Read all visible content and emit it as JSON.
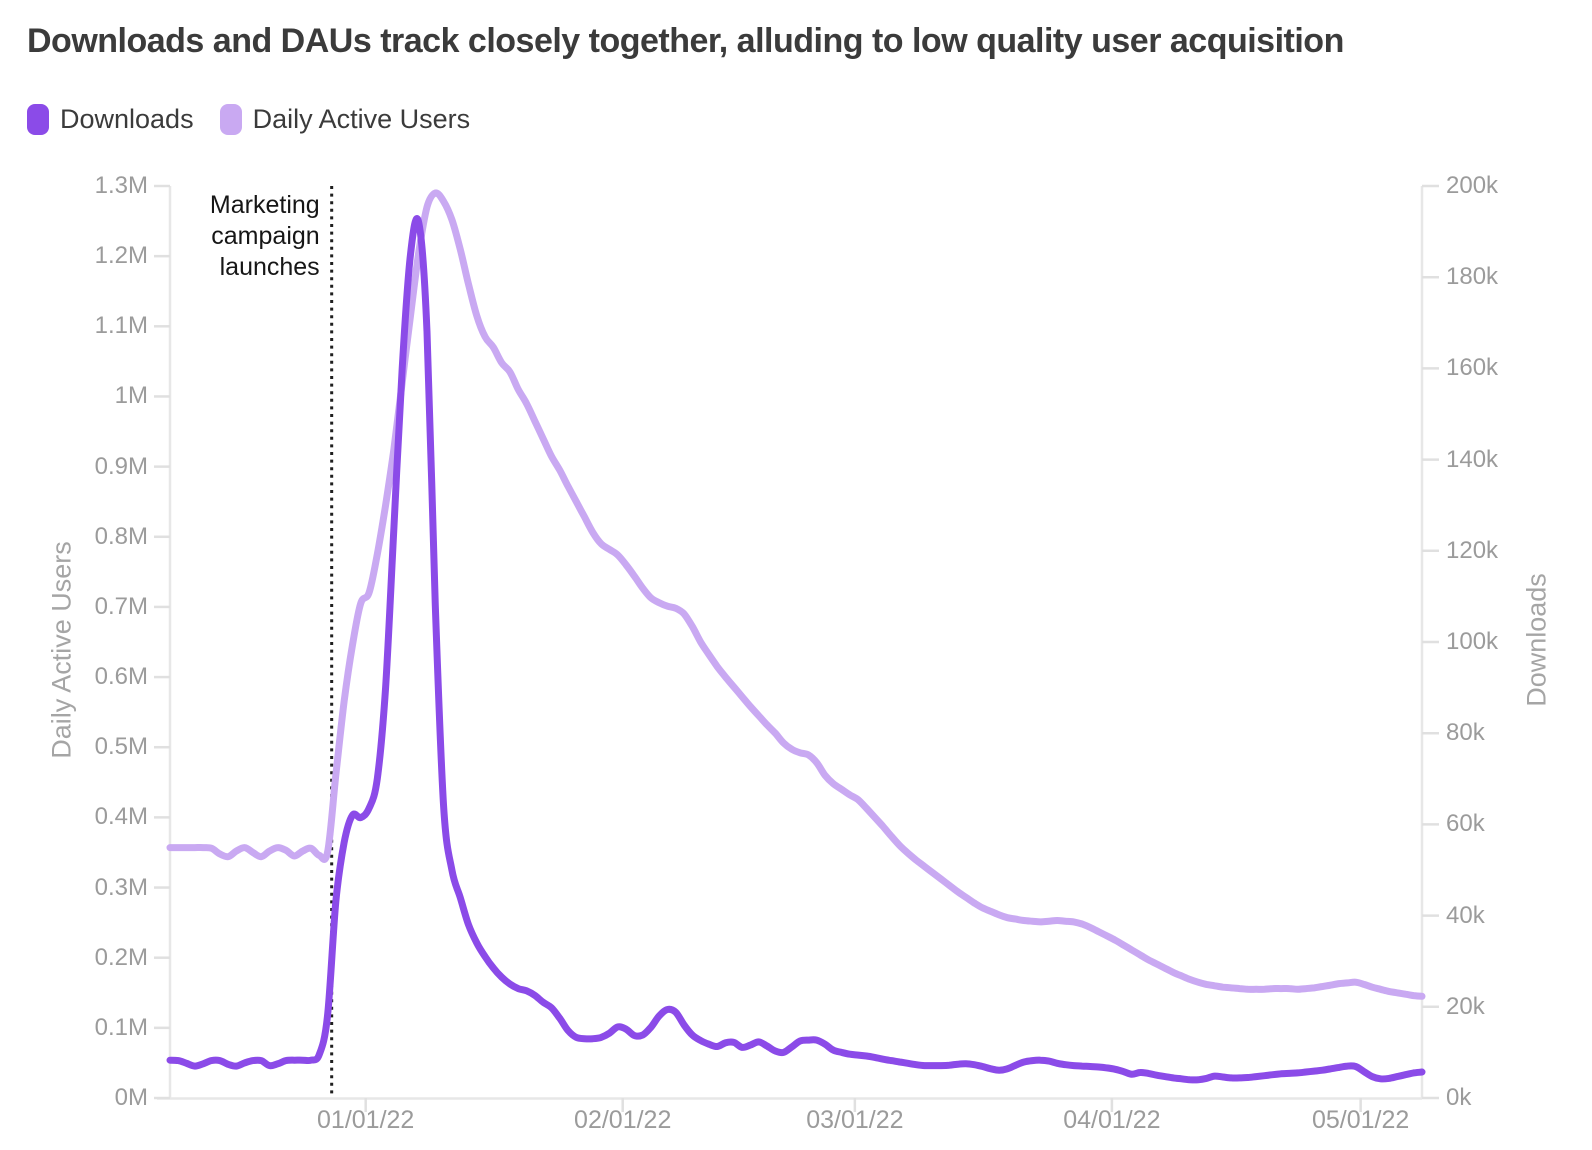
{
  "title": "Downloads and DAUs track closely together, alluding to low quality user acquisition",
  "legend": {
    "items": [
      {
        "label": "Downloads",
        "color": "#8B4BE8"
      },
      {
        "label": "Daily Active Users",
        "color": "#C9A9F2"
      }
    ]
  },
  "chart_data": {
    "type": "line",
    "title": "Downloads and DAUs track closely together, alluding to low quality user acquisition",
    "x_unit": "day_index_from_chart_start",
    "x_range_days": 151,
    "grid": "off",
    "legend_position": "top-left",
    "axis_text_color": "#9B9B9B",
    "axis_line_color": "#E7E7E7",
    "x_ticks": [
      {
        "day": 23.6,
        "label": "01/01/22"
      },
      {
        "day": 54.6,
        "label": "02/01/22"
      },
      {
        "day": 82.6,
        "label": "03/01/22"
      },
      {
        "day": 113.6,
        "label": "04/01/22"
      },
      {
        "day": 143.6,
        "label": "05/01/22"
      }
    ],
    "annotation": {
      "text": "Marketing campaign launches",
      "lines": [
        "Marketing",
        "campaign",
        "launches"
      ],
      "day": 19.5,
      "line_color": "#1F1F1F",
      "line_style": "dotted-vertical"
    },
    "left_axis": {
      "label": "Daily Active Users",
      "unit": "M",
      "min": 0,
      "max": 1.3,
      "tick_step": 0.1,
      "tick_labels": [
        "0M",
        "0.1M",
        "0.2M",
        "0.3M",
        "0.4M",
        "0.5M",
        "0.6M",
        "0.7M",
        "0.8M",
        "0.9M",
        "1M",
        "1.1M",
        "1.2M",
        "1.3M"
      ]
    },
    "right_axis": {
      "label": "Downloads",
      "unit": "k",
      "min": 0,
      "max": 200,
      "tick_step": 20,
      "tick_labels": [
        "0k",
        "20k",
        "40k",
        "60k",
        "80k",
        "100k",
        "120k",
        "140k",
        "160k",
        "180k",
        "200k"
      ]
    },
    "series": [
      {
        "name": "Downloads",
        "axis": "right",
        "color": "#8B4BE8",
        "unit": "thousands",
        "points": [
          [
            0,
            8.3
          ],
          [
            1,
            8.2
          ],
          [
            2,
            7.6
          ],
          [
            3,
            7.0
          ],
          [
            4,
            7.5
          ],
          [
            5,
            8.2
          ],
          [
            6,
            8.2
          ],
          [
            7,
            7.4
          ],
          [
            8,
            7.0
          ],
          [
            9,
            7.7
          ],
          [
            10,
            8.2
          ],
          [
            11,
            8.2
          ],
          [
            12,
            7.1
          ],
          [
            13,
            7.5
          ],
          [
            14,
            8.2
          ],
          [
            15,
            8.3
          ],
          [
            16,
            8.3
          ],
          [
            17,
            8.3
          ],
          [
            18,
            9.5
          ],
          [
            19,
            18
          ],
          [
            20,
            43
          ],
          [
            21,
            56
          ],
          [
            22,
            62
          ],
          [
            23,
            61.5
          ],
          [
            24,
            63.5
          ],
          [
            25,
            70
          ],
          [
            26,
            90
          ],
          [
            27,
            125
          ],
          [
            28,
            160
          ],
          [
            29,
            185
          ],
          [
            30,
            192
          ],
          [
            31,
            168
          ],
          [
            32,
            108
          ],
          [
            33,
            64
          ],
          [
            34,
            50
          ],
          [
            35,
            44
          ],
          [
            36,
            38
          ],
          [
            37,
            34
          ],
          [
            38,
            31
          ],
          [
            39,
            28.5
          ],
          [
            40,
            26.5
          ],
          [
            41,
            25
          ],
          [
            42,
            24
          ],
          [
            43,
            23.5
          ],
          [
            44,
            22.5
          ],
          [
            45,
            21
          ],
          [
            46,
            19.8
          ],
          [
            47,
            17.5
          ],
          [
            48,
            14.8
          ],
          [
            49,
            13.3
          ],
          [
            50,
            13
          ],
          [
            51,
            13
          ],
          [
            52,
            13.3
          ],
          [
            53,
            14.2
          ],
          [
            54,
            15.6
          ],
          [
            55,
            15.1
          ],
          [
            56,
            13.7
          ],
          [
            57,
            13.8
          ],
          [
            58,
            15.5
          ],
          [
            59,
            18
          ],
          [
            60,
            19.4
          ],
          [
            61,
            18.8
          ],
          [
            62,
            16
          ],
          [
            63,
            13.8
          ],
          [
            64,
            12.6
          ],
          [
            65,
            11.8
          ],
          [
            66,
            11.3
          ],
          [
            67,
            12.1
          ],
          [
            68,
            12.2
          ],
          [
            69,
            11.1
          ],
          [
            70,
            11.6
          ],
          [
            71,
            12.3
          ],
          [
            72,
            11.4
          ],
          [
            73,
            10.3
          ],
          [
            74,
            10
          ],
          [
            75,
            11.2
          ],
          [
            76,
            12.5
          ],
          [
            77,
            12.7
          ],
          [
            78,
            12.7
          ],
          [
            79,
            11.8
          ],
          [
            80,
            10.5
          ],
          [
            81,
            10
          ],
          [
            82,
            9.6
          ],
          [
            83,
            9.4
          ],
          [
            84,
            9.2
          ],
          [
            85,
            8.9
          ],
          [
            86,
            8.5
          ],
          [
            87,
            8.2
          ],
          [
            88,
            7.9
          ],
          [
            89,
            7.6
          ],
          [
            90,
            7.3
          ],
          [
            91,
            7.1
          ],
          [
            92,
            7.1
          ],
          [
            93,
            7.1
          ],
          [
            94,
            7.2
          ],
          [
            95,
            7.4
          ],
          [
            96,
            7.5
          ],
          [
            97,
            7.3
          ],
          [
            98,
            6.9
          ],
          [
            99,
            6.4
          ],
          [
            100,
            6.1
          ],
          [
            101,
            6.4
          ],
          [
            102,
            7.2
          ],
          [
            103,
            7.9
          ],
          [
            104,
            8.2
          ],
          [
            105,
            8.3
          ],
          [
            106,
            8.1
          ],
          [
            107,
            7.6
          ],
          [
            108,
            7.3
          ],
          [
            109,
            7.1
          ],
          [
            110,
            7.0
          ],
          [
            111,
            6.9
          ],
          [
            112,
            6.8
          ],
          [
            113,
            6.6
          ],
          [
            114,
            6.3
          ],
          [
            115,
            5.8
          ],
          [
            116,
            5.2
          ],
          [
            117,
            5.6
          ],
          [
            118,
            5.4
          ],
          [
            119,
            5.0
          ],
          [
            120,
            4.7
          ],
          [
            121,
            4.4
          ],
          [
            122,
            4.2
          ],
          [
            123,
            4.0
          ],
          [
            124,
            4.0
          ],
          [
            125,
            4.3
          ],
          [
            126,
            4.8
          ],
          [
            127,
            4.6
          ],
          [
            128,
            4.4
          ],
          [
            129,
            4.4
          ],
          [
            130,
            4.5
          ],
          [
            131,
            4.7
          ],
          [
            132,
            4.9
          ],
          [
            133,
            5.1
          ],
          [
            134,
            5.3
          ],
          [
            135,
            5.4
          ],
          [
            136,
            5.5
          ],
          [
            137,
            5.7
          ],
          [
            138,
            5.9
          ],
          [
            139,
            6.1
          ],
          [
            140,
            6.4
          ],
          [
            141,
            6.7
          ],
          [
            142,
            7.0
          ],
          [
            143,
            6.9
          ],
          [
            144,
            5.8
          ],
          [
            145,
            4.7
          ],
          [
            146,
            4.2
          ],
          [
            147,
            4.3
          ],
          [
            148,
            4.7
          ],
          [
            149,
            5.1
          ],
          [
            150,
            5.5
          ],
          [
            151,
            5.7
          ]
        ]
      },
      {
        "name": "Daily Active Users",
        "axis": "left",
        "color": "#C9A9F2",
        "unit": "millions",
        "points": [
          [
            0,
            0.357
          ],
          [
            1,
            0.357
          ],
          [
            2,
            0.357
          ],
          [
            3,
            0.357
          ],
          [
            4,
            0.357
          ],
          [
            5,
            0.356
          ],
          [
            6,
            0.348
          ],
          [
            7,
            0.344
          ],
          [
            8,
            0.352
          ],
          [
            9,
            0.357
          ],
          [
            10,
            0.35
          ],
          [
            11,
            0.344
          ],
          [
            12,
            0.352
          ],
          [
            13,
            0.357
          ],
          [
            14,
            0.353
          ],
          [
            15,
            0.345
          ],
          [
            16,
            0.352
          ],
          [
            17,
            0.356
          ],
          [
            18,
            0.346
          ],
          [
            19,
            0.35
          ],
          [
            20,
            0.46
          ],
          [
            21,
            0.565
          ],
          [
            22,
            0.645
          ],
          [
            23,
            0.705
          ],
          [
            24,
            0.72
          ],
          [
            25,
            0.775
          ],
          [
            26,
            0.845
          ],
          [
            27,
            0.925
          ],
          [
            28,
            1.02
          ],
          [
            29,
            1.115
          ],
          [
            30,
            1.205
          ],
          [
            31,
            1.27
          ],
          [
            32,
            1.29
          ],
          [
            33,
            1.278
          ],
          [
            34,
            1.252
          ],
          [
            35,
            1.21
          ],
          [
            36,
            1.16
          ],
          [
            37,
            1.115
          ],
          [
            38,
            1.085
          ],
          [
            39,
            1.07
          ],
          [
            40,
            1.048
          ],
          [
            41,
            1.035
          ],
          [
            42,
            1.01
          ],
          [
            43,
            0.99
          ],
          [
            44,
            0.965
          ],
          [
            45,
            0.94
          ],
          [
            46,
            0.915
          ],
          [
            47,
            0.895
          ],
          [
            48,
            0.872
          ],
          [
            49,
            0.85
          ],
          [
            50,
            0.828
          ],
          [
            51,
            0.806
          ],
          [
            52,
            0.79
          ],
          [
            53,
            0.782
          ],
          [
            54,
            0.774
          ],
          [
            55,
            0.76
          ],
          [
            56,
            0.744
          ],
          [
            57,
            0.727
          ],
          [
            58,
            0.713
          ],
          [
            59,
            0.706
          ],
          [
            60,
            0.701
          ],
          [
            61,
            0.698
          ],
          [
            62,
            0.69
          ],
          [
            63,
            0.672
          ],
          [
            64,
            0.65
          ],
          [
            65,
            0.632
          ],
          [
            66,
            0.615
          ],
          [
            67,
            0.6
          ],
          [
            68,
            0.586
          ],
          [
            69,
            0.572
          ],
          [
            70,
            0.558
          ],
          [
            71,
            0.545
          ],
          [
            72,
            0.532
          ],
          [
            73,
            0.52
          ],
          [
            74,
            0.506
          ],
          [
            75,
            0.497
          ],
          [
            76,
            0.492
          ],
          [
            77,
            0.489
          ],
          [
            78,
            0.478
          ],
          [
            79,
            0.46
          ],
          [
            80,
            0.448
          ],
          [
            81,
            0.44
          ],
          [
            82,
            0.432
          ],
          [
            83,
            0.425
          ],
          [
            84,
            0.413
          ],
          [
            85,
            0.4
          ],
          [
            86,
            0.387
          ],
          [
            87,
            0.373
          ],
          [
            88,
            0.36
          ],
          [
            89,
            0.349
          ],
          [
            90,
            0.339
          ],
          [
            91,
            0.33
          ],
          [
            92,
            0.321
          ],
          [
            93,
            0.312
          ],
          [
            94,
            0.303
          ],
          [
            95,
            0.294
          ],
          [
            96,
            0.286
          ],
          [
            97,
            0.278
          ],
          [
            98,
            0.271
          ],
          [
            99,
            0.266
          ],
          [
            100,
            0.261
          ],
          [
            101,
            0.257
          ],
          [
            102,
            0.255
          ],
          [
            103,
            0.253
          ],
          [
            104,
            0.252
          ],
          [
            105,
            0.251
          ],
          [
            106,
            0.252
          ],
          [
            107,
            0.253
          ],
          [
            108,
            0.252
          ],
          [
            109,
            0.251
          ],
          [
            110,
            0.248
          ],
          [
            111,
            0.243
          ],
          [
            112,
            0.237
          ],
          [
            113,
            0.231
          ],
          [
            114,
            0.225
          ],
          [
            115,
            0.218
          ],
          [
            116,
            0.211
          ],
          [
            117,
            0.204
          ],
          [
            118,
            0.197
          ],
          [
            119,
            0.191
          ],
          [
            120,
            0.185
          ],
          [
            121,
            0.179
          ],
          [
            122,
            0.174
          ],
          [
            123,
            0.169
          ],
          [
            124,
            0.165
          ],
          [
            125,
            0.162
          ],
          [
            126,
            0.16
          ],
          [
            127,
            0.158
          ],
          [
            128,
            0.157
          ],
          [
            129,
            0.156
          ],
          [
            130,
            0.155
          ],
          [
            131,
            0.155
          ],
          [
            132,
            0.155
          ],
          [
            133,
            0.156
          ],
          [
            134,
            0.156
          ],
          [
            135,
            0.156
          ],
          [
            136,
            0.155
          ],
          [
            137,
            0.156
          ],
          [
            138,
            0.157
          ],
          [
            139,
            0.159
          ],
          [
            140,
            0.161
          ],
          [
            141,
            0.163
          ],
          [
            142,
            0.164
          ],
          [
            143,
            0.165
          ],
          [
            144,
            0.162
          ],
          [
            145,
            0.158
          ],
          [
            146,
            0.155
          ],
          [
            147,
            0.152
          ],
          [
            148,
            0.15
          ],
          [
            149,
            0.148
          ],
          [
            150,
            0.146
          ],
          [
            151,
            0.145
          ]
        ]
      }
    ]
  }
}
